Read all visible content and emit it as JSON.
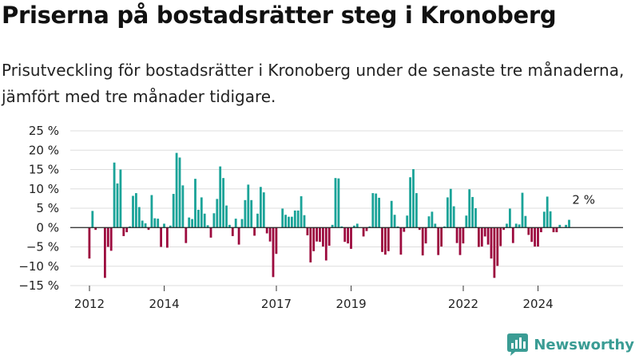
{
  "header": {
    "title": "Priserna på bostadsrätter steg i Kronoberg",
    "subtitle": "Prisutveckling för bostadsrätter i Kronoberg under de senaste tre månaderna, jämfört med tre månader tidigare."
  },
  "brand": {
    "name": "Newsworthy",
    "icon": "newsworthy-logo-icon",
    "color": "#3a9c94"
  },
  "colors": {
    "positive": "#1aa398",
    "negative": "#9c0a3e",
    "grid": "#dddddd",
    "zero_line": "#222222"
  },
  "chart_data": {
    "type": "bar",
    "title": "Priserna på bostadsrätter steg i Kronoberg",
    "subtitle": "Prisutveckling för bostadsrätter i Kronoberg under de senaste tre månaderna, jämfört med tre månader tidigare.",
    "xlabel": "",
    "ylabel": "",
    "ylim": [
      -15,
      25
    ],
    "yticks": [
      25,
      20,
      15,
      10,
      5,
      0,
      -5,
      -10,
      -15
    ],
    "ytick_labels": [
      "25 %",
      "20 %",
      "15 %",
      "10 %",
      "5 %",
      "0 %",
      "−5 %",
      "−10 %",
      "−15 %"
    ],
    "xticks": [
      "2012",
      "2014",
      "2017",
      "2019",
      "2022",
      "2024"
    ],
    "xlim": [
      "2011-06",
      "2025-08"
    ],
    "grid": true,
    "annotation": {
      "text": "2 %",
      "x": "2025-01",
      "value": 2
    },
    "x_start": "2012-01",
    "x_step": "1 month",
    "values": [
      -8,
      4.3,
      -0.6,
      0,
      0,
      -13,
      -5,
      -6,
      16.8,
      11.4,
      15,
      -2.2,
      -1.2,
      0.3,
      8.2,
      8.9,
      5.3,
      1.8,
      1.1,
      -0.6,
      8.4,
      2.4,
      2.3,
      -5,
      1,
      -5.2,
      0.5,
      8.7,
      19.3,
      18.1,
      10.9,
      -4,
      2.6,
      2.2,
      12.6,
      4.6,
      7.8,
      3.6,
      0.6,
      -2.6,
      3.7,
      7.4,
      15.8,
      12.8,
      5.7,
      0.7,
      -2.2,
      2.3,
      -4.4,
      2.2,
      7.1,
      11.1,
      7.1,
      -2.1,
      3.6,
      10.5,
      9.1,
      -1.5,
      -3.6,
      -12.8,
      -6.8,
      0,
      4.9,
      3.3,
      2.8,
      2.8,
      4.4,
      4.4,
      8.1,
      3.2,
      -2,
      -9,
      -6.1,
      -3.6,
      -3.7,
      -4.9,
      -8.5,
      -4.7,
      0.7,
      12.8,
      12.7,
      0.3,
      -3.7,
      -4.1,
      -5.5,
      0.5,
      1,
      0,
      -2.3,
      -0.9,
      0.3,
      8.9,
      8.8,
      7.7,
      -6.3,
      -7,
      -6.1,
      6.9,
      3.3,
      0.3,
      -7,
      -1.1,
      3.1,
      13,
      15.1,
      8.9,
      -0.6,
      -7.2,
      -4.1,
      2.9,
      4.1,
      1,
      -7.1,
      -4.9,
      0.3,
      7.8,
      10,
      5.5,
      -4,
      -7.1,
      -4.1,
      3.1,
      9.9,
      7.9,
      5,
      -5,
      -4.9,
      -2.3,
      -4.4,
      -8,
      -13,
      -9.9,
      -4.8,
      -0.6,
      1,
      4.9,
      -4,
      1,
      0.8,
      9,
      3,
      -1.9,
      -3.7,
      -4.9,
      -4.9,
      -1.2,
      4.1,
      8,
      4.2,
      -1.2,
      -1.2,
      0.7,
      0,
      0.7,
      2
    ]
  }
}
